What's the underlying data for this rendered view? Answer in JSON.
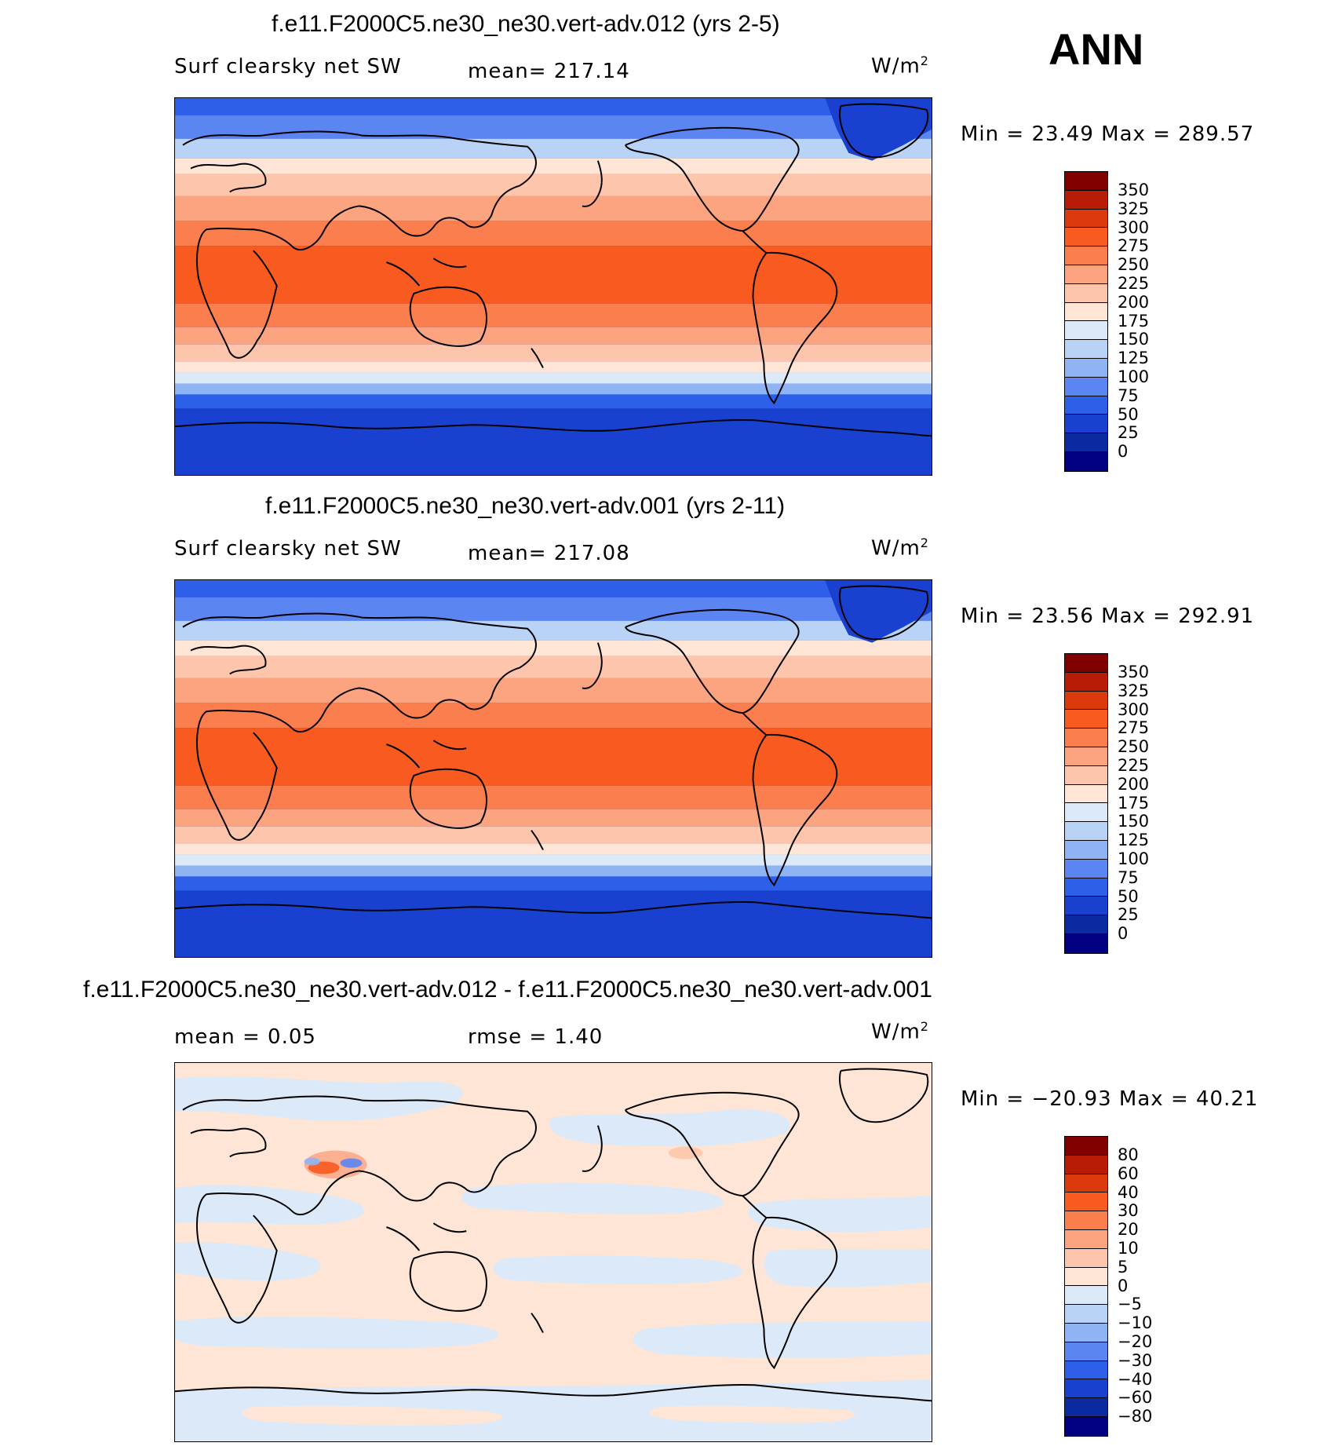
{
  "season": "ANN",
  "panels": [
    {
      "title": "f.e11.F2000C5.ne30_ne30.vert-adv.012 (yrs 2-5)",
      "left_label": "Surf clearsky net SW",
      "center_label": "mean= 217.14",
      "units": "W/m",
      "units_sup": "2",
      "minmax": "Min =   23.49 Max =  289.57",
      "colorbar_ticks": [
        "350",
        "325",
        "300",
        "275",
        "250",
        "225",
        "200",
        "175",
        "150",
        "125",
        "100",
        "75",
        "50",
        "25",
        "0"
      ]
    },
    {
      "title": "f.e11.F2000C5.ne30_ne30.vert-adv.001 (yrs 2-11)",
      "left_label": "Surf clearsky net SW",
      "center_label": "mean= 217.08",
      "units": "W/m",
      "units_sup": "2",
      "minmax": "Min =   23.56 Max =  292.91",
      "colorbar_ticks": [
        "350",
        "325",
        "300",
        "275",
        "250",
        "225",
        "200",
        "175",
        "150",
        "125",
        "100",
        "75",
        "50",
        "25",
        "0"
      ]
    },
    {
      "title": "f.e11.F2000C5.ne30_ne30.vert-adv.012 - f.e11.F2000C5.ne30_ne30.vert-adv.001",
      "left_label": "mean =    0.05",
      "center_label": "rmse =    1.40",
      "units": "W/m",
      "units_sup": "2",
      "minmax": "Min = −20.93 Max =   40.21",
      "colorbar_ticks": [
        "80",
        "60",
        "40",
        "30",
        "20",
        "10",
        "5",
        "0",
        "−5",
        "−10",
        "−20",
        "−30",
        "−40",
        "−60",
        "−80"
      ]
    }
  ],
  "colors": {
    "abs_scale": [
      "#800000",
      "#b81c07",
      "#dc3a0d",
      "#f85a1f",
      "#fb7e4e",
      "#fca37f",
      "#fdc6ac",
      "#fee5d6",
      "#dbe9f9",
      "#b9d3f6",
      "#8fb4f4",
      "#5b86f2",
      "#2e5fe8",
      "#1a40d0",
      "#0c2aa0",
      "#000080"
    ],
    "diff_scale": [
      "#800000",
      "#b81c07",
      "#dc3a0d",
      "#f85a1f",
      "#fb7e4e",
      "#fca37f",
      "#fdc6ac",
      "#fee5d6",
      "#dbe9f9",
      "#b9d3f6",
      "#8fb4f4",
      "#5b86f2",
      "#2e5fe8",
      "#1a40d0",
      "#0c2aa0",
      "#000080"
    ]
  }
}
